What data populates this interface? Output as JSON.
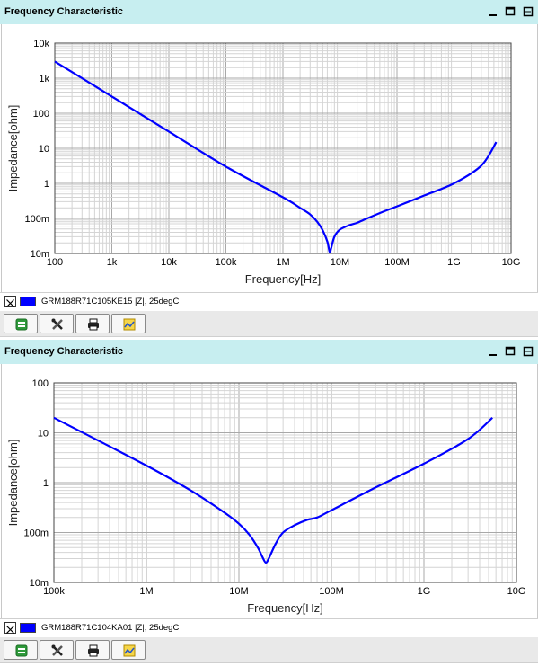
{
  "panels": [
    {
      "id": "panel1",
      "title": "Frequency Characteristic",
      "legend": {
        "checkbox": "X",
        "text": "GRM188R71C105KE15  |Z|, 25degC",
        "color": "#0000ff"
      },
      "chart_data": {
        "type": "line",
        "xscale": "log",
        "yscale": "log",
        "xlim": [
          100,
          10000000000
        ],
        "ylim": [
          0.01,
          10000
        ],
        "xlabel": "Frequency[Hz]",
        "ylabel": "Impedance[ohm]",
        "xticks": [
          {
            "v": 100,
            "label": "100"
          },
          {
            "v": 1000,
            "label": "1k"
          },
          {
            "v": 10000,
            "label": "10k"
          },
          {
            "v": 100000,
            "label": "100k"
          },
          {
            "v": 1000000,
            "label": "1M"
          },
          {
            "v": 10000000,
            "label": "10M"
          },
          {
            "v": 100000000,
            "label": "100M"
          },
          {
            "v": 1000000000,
            "label": "1G"
          },
          {
            "v": 10000000000,
            "label": "10G"
          }
        ],
        "yticks": [
          {
            "v": 0.01,
            "label": "10m"
          },
          {
            "v": 0.1,
            "label": "100m"
          },
          {
            "v": 1,
            "label": "1"
          },
          {
            "v": 10,
            "label": "10"
          },
          {
            "v": 100,
            "label": "100"
          },
          {
            "v": 1000,
            "label": "1k"
          },
          {
            "v": 10000,
            "label": "10k"
          }
        ],
        "grid": true,
        "series": [
          {
            "color": "#0000ff",
            "x": [
              100,
              1000,
              10000,
              100000,
              1000000,
              2000000,
              3000000,
              4000000,
              5000000,
              6000000,
              6600000,
              7000000,
              8000000,
              10000000,
              15000000,
              20000000,
              30000000,
              60000000,
              100000000,
              300000000,
              1000000000,
              3000000000,
              5500000000
            ],
            "y": [
              3000,
              300,
              30,
              3,
              0.4,
              0.2,
              0.13,
              0.08,
              0.045,
              0.022,
              0.011,
              0.014,
              0.03,
              0.048,
              0.065,
              0.075,
              0.1,
              0.16,
              0.22,
              0.45,
              1.0,
              3.2,
              15
            ]
          }
        ]
      }
    },
    {
      "id": "panel2",
      "title": "Frequency Characteristic",
      "legend": {
        "checkbox": "X",
        "text": "GRM188R71C104KA01  |Z|, 25degC",
        "color": "#0000ff"
      },
      "chart_data": {
        "type": "line",
        "xscale": "log",
        "yscale": "log",
        "xlim": [
          100000,
          10000000000
        ],
        "ylim": [
          0.01,
          100
        ],
        "xlabel": "Frequency[Hz]",
        "ylabel": "Impedance[ohm]",
        "xticks": [
          {
            "v": 100000,
            "label": "100k"
          },
          {
            "v": 1000000,
            "label": "1M"
          },
          {
            "v": 10000000,
            "label": "10M"
          },
          {
            "v": 100000000,
            "label": "100M"
          },
          {
            "v": 1000000000,
            "label": "1G"
          },
          {
            "v": 10000000000,
            "label": "10G"
          }
        ],
        "yticks": [
          {
            "v": 0.01,
            "label": "10m"
          },
          {
            "v": 0.1,
            "label": "100m"
          },
          {
            "v": 1,
            "label": "1"
          },
          {
            "v": 10,
            "label": "10"
          },
          {
            "v": 100,
            "label": "100"
          }
        ],
        "grid": true,
        "series": [
          {
            "color": "#0000ff",
            "x": [
              100000,
              1000000,
              3000000,
              7000000,
              10000000,
              13000000,
              16000000,
              18000000,
              19500000,
              21000000,
              25000000,
              30000000,
              40000000,
              55000000,
              70000000,
              100000000,
              300000000,
              1000000000,
              3000000000,
              5500000000
            ],
            "y": [
              20,
              2.2,
              0.7,
              0.25,
              0.15,
              0.09,
              0.05,
              0.032,
              0.025,
              0.03,
              0.06,
              0.1,
              0.14,
              0.18,
              0.2,
              0.28,
              0.8,
              2.4,
              7.5,
              20
            ]
          }
        ]
      }
    }
  ],
  "icons": {
    "minimize": "minimize-icon",
    "maximize": "maximize-icon",
    "close": "close-icon",
    "toolbar": [
      "copy-data-icon",
      "settings-tools-icon",
      "print-icon",
      "export-image-icon"
    ]
  }
}
